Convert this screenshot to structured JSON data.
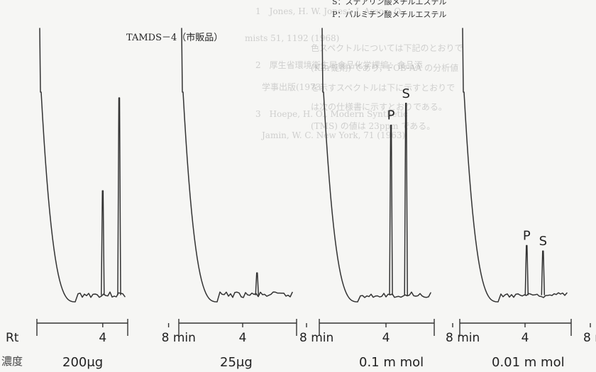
{
  "chart_data": {
    "type": "line",
    "title": "TAMDS－4（市販品）",
    "legend": [
      "S：ステアリン酸メチルエステル",
      "P：パルミチン酸メチルエステル"
    ],
    "x_axis_label": "Rt",
    "x_unit": "min",
    "x_ticks": [
      4,
      8
    ],
    "concentration_row_label": "濃度",
    "panels": [
      {
        "concentration": "200μg",
        "show_rt": true,
        "peaks": [
          {
            "x": 4.0,
            "height": 0.38,
            "label": ""
          },
          {
            "x": 5.0,
            "height": 0.72,
            "label": ""
          }
        ]
      },
      {
        "concentration": "25μg",
        "show_rt": false,
        "peaks": [
          {
            "x": 4.9,
            "height": 0.08,
            "label": ""
          }
        ]
      },
      {
        "concentration": "0.1 m mol",
        "show_rt": false,
        "peaks": [
          {
            "x": 4.3,
            "height": 0.62,
            "label": "P"
          },
          {
            "x": 5.2,
            "height": 0.7,
            "label": "S"
          }
        ]
      },
      {
        "concentration": "0.01 m mol",
        "show_rt": false,
        "peaks": [
          {
            "x": 4.1,
            "height": 0.18,
            "label": "P"
          },
          {
            "x": 5.1,
            "height": 0.16,
            "label": "S"
          }
        ]
      }
    ],
    "background_text": [
      "1　Jones, H. W. Jones：J. Assoc. O",
      "mists 51, 1192 (1968)",
      "2　厚生省環境衛生局食品化学課編：食品添",
      "　　学事出版(1973)",
      "3　Hoepe, H. O., Modern Synthetic",
      "　　Jamin, W. C. New York, 71 (1963)",
      "色スペクトルについては下記のとおりで",
      "(KBr錠剤) であり，FOB-AA の分析値",
      "を示すスペクトルは下に示すとおりで",
      "は次の仕様書に示すとおりである。",
      "(TMS) の値は 23ppm である。"
    ]
  }
}
